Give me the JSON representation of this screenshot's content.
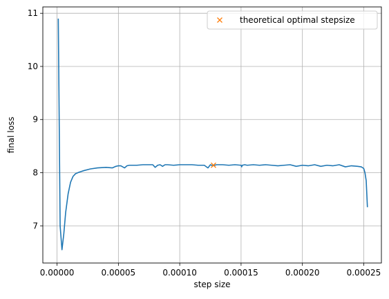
{
  "chart_data": {
    "type": "line",
    "xlabel": "step size",
    "ylabel": "final loss",
    "xlim": [
      -1.16e-05,
      0.0002644
    ],
    "ylim": [
      6.3,
      11.12
    ],
    "grid": true,
    "legend_position": "top-right",
    "x_ticks": [
      0.0,
      5e-05,
      0.0001,
      0.00015,
      0.0002,
      0.00025
    ],
    "x_tick_labels": [
      "0.00000",
      "0.00005",
      "0.00010",
      "0.00015",
      "0.00020",
      "0.00025"
    ],
    "y_ticks": [
      7,
      8,
      9,
      10,
      11
    ],
    "y_tick_labels": [
      "7",
      "8",
      "9",
      "10",
      "11"
    ],
    "colors": {
      "series": "#1f77b4",
      "marker": "#ff7f0e",
      "grid": "#b0b0b0"
    },
    "series": [
      {
        "style": "line",
        "x": [
          1e-06,
          2.5e-06,
          4e-06,
          5.5e-06,
          7e-06,
          9e-06,
          1.1e-05,
          1.3e-05,
          1.5e-05,
          1.8e-05,
          2.2e-05,
          2.7e-05,
          3.3e-05,
          4e-05,
          4.5e-05,
          4.8e-05,
          5e-05,
          5.2e-05,
          5.5e-05,
          5.7e-05,
          5.9e-05,
          6e-05,
          6.5e-05,
          7e-05,
          7.8e-05,
          8e-05,
          8.2e-05,
          8.4e-05,
          8.6e-05,
          8.8e-05,
          9e-05,
          9.5e-05,
          0.0001,
          0.000105,
          0.00011,
          0.000115,
          0.00012,
          0.000123,
          0.000125,
          0.000127,
          0.00013,
          0.000135,
          0.00014,
          0.000145,
          0.00015,
          0.0001505,
          0.000151,
          0.000153,
          0.000155,
          0.00016,
          0.000165,
          0.00017,
          0.000175,
          0.00018,
          0.000185,
          0.00019,
          0.000195,
          0.0002,
          0.000205,
          0.00021,
          0.000215,
          0.00022,
          0.000225,
          0.00023,
          0.000235,
          0.00024,
          0.000245,
          0.000248,
          0.00025,
          0.000251,
          0.000252,
          0.000253
        ],
        "y": [
          10.9,
          7.0,
          6.55,
          6.85,
          7.25,
          7.6,
          7.82,
          7.93,
          7.98,
          8.01,
          8.04,
          8.07,
          8.09,
          8.1,
          8.09,
          8.12,
          8.13,
          8.13,
          8.09,
          8.13,
          8.14,
          8.14,
          8.14,
          8.15,
          8.15,
          8.1,
          8.14,
          8.15,
          8.12,
          8.15,
          8.15,
          8.14,
          8.15,
          8.15,
          8.15,
          8.14,
          8.14,
          8.09,
          8.15,
          8.13,
          8.15,
          8.15,
          8.14,
          8.15,
          8.14,
          8.11,
          8.14,
          8.15,
          8.14,
          8.15,
          8.14,
          8.15,
          8.14,
          8.13,
          8.14,
          8.15,
          8.12,
          8.14,
          8.13,
          8.15,
          8.12,
          8.14,
          8.13,
          8.15,
          8.11,
          8.13,
          8.12,
          8.11,
          8.08,
          8.0,
          7.85,
          7.35
        ]
      },
      {
        "name": "theoretical optimal stepsize",
        "style": "marker",
        "marker": "x",
        "x": [
          0.0001275
        ],
        "y": [
          8.14
        ]
      }
    ]
  }
}
